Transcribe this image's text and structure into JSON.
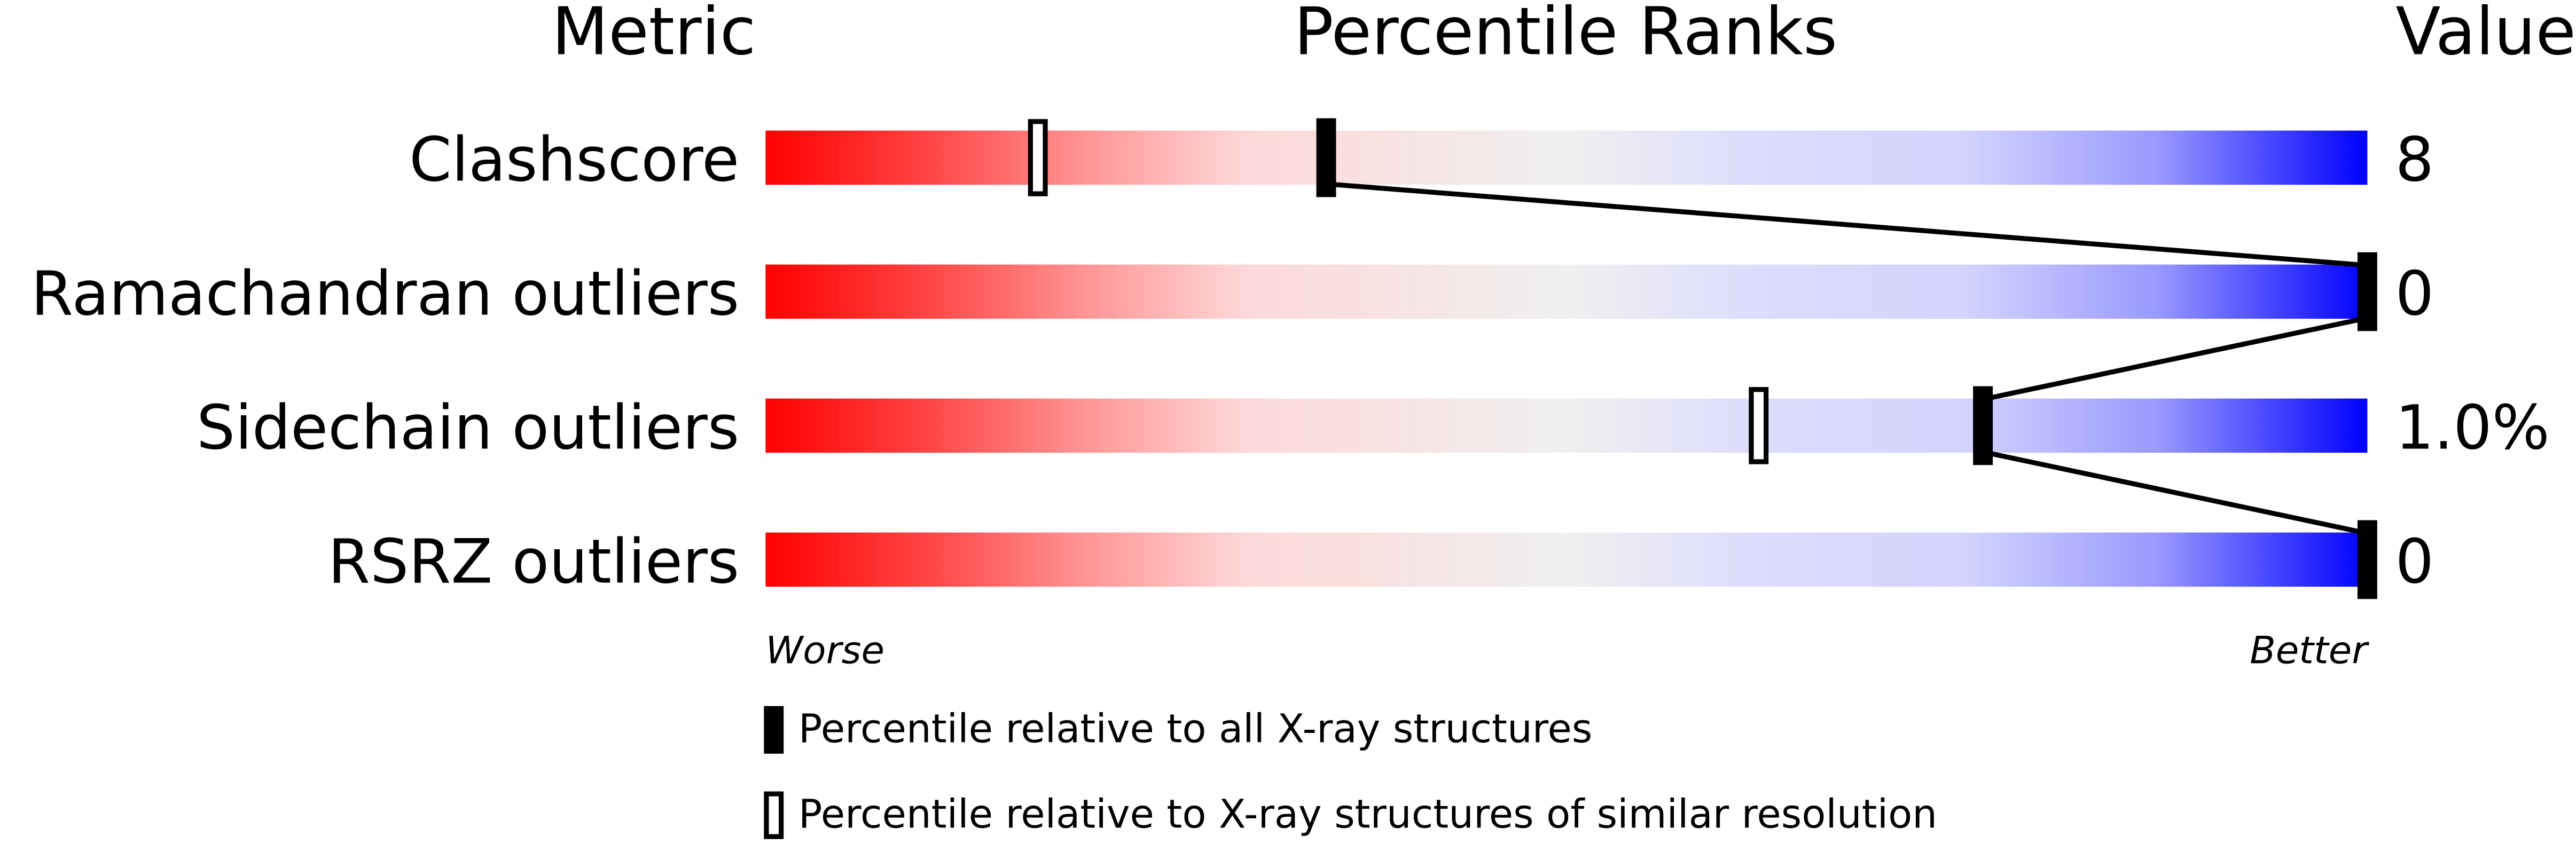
{
  "chart_data": {
    "type": "percentile-slider",
    "headers": {
      "metric": "Metric",
      "ranks": "Percentile Ranks",
      "value": "Value"
    },
    "xlim": [
      0,
      100
    ],
    "axis_labels": {
      "left": "Worse",
      "right": "Better"
    },
    "gradient_colors": [
      "#ff0000",
      "#fdd8d8",
      "#f0f0f0",
      "#dcdcfd",
      "#0000ff"
    ],
    "metrics": [
      {
        "name": "Clashscore",
        "value": "8",
        "percentile_all": 35,
        "percentile_similar": 17
      },
      {
        "name": "Ramachandran outliers",
        "value": "0",
        "percentile_all": 100,
        "percentile_similar": null
      },
      {
        "name": "Sidechain outliers",
        "value": "1.0%",
        "percentile_all": 76,
        "percentile_similar": 62
      },
      {
        "name": "RSRZ outliers",
        "value": "0",
        "percentile_all": 100,
        "percentile_similar": null
      }
    ],
    "legend": [
      {
        "marker": "filled",
        "label": "Percentile relative to all X-ray structures"
      },
      {
        "marker": "open",
        "label": "Percentile relative to X-ray structures of similar resolution"
      }
    ]
  }
}
